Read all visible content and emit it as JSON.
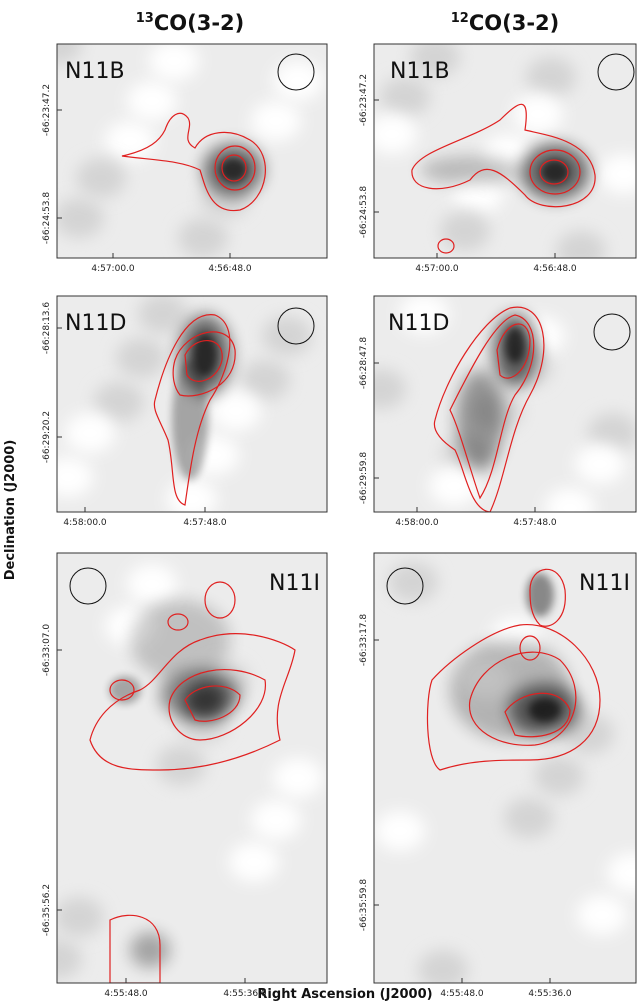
{
  "columns": [
    {
      "sup": "13",
      "text": "CO(3-2)"
    },
    {
      "sup": "12",
      "text": "CO(3-2)"
    }
  ],
  "y_axis_label": "Declination (J2000)",
  "x_axis_label": "Right Ascension (J2000)",
  "panels": [
    {
      "label": "N11B",
      "yticks": [
        "-66:23:47.2",
        "-66:24:53.8"
      ],
      "xticks": [
        "4:57:00.0",
        "4:56:48.0"
      ]
    },
    {
      "label": "N11B",
      "yticks": [
        "-66:23:47.2",
        "-66:24:53.8"
      ],
      "xticks": [
        "4:57:00.0",
        "4:56:48.0"
      ]
    },
    {
      "label": "N11D",
      "yticks": [
        "-66:28:13.6",
        "-66:29:20.2"
      ],
      "xticks": [
        "4:58:00.0",
        "4:57:48.0"
      ]
    },
    {
      "label": "N11D",
      "yticks": [
        "-66:28:47.8",
        "-66:29:59.8"
      ],
      "xticks": [
        "4:58:00.0",
        "4:57:48.0"
      ]
    },
    {
      "label": "N11I",
      "yticks": [
        "-66:33:07.0",
        "-66:35:56.2"
      ],
      "xticks": [
        "4:55:48.0",
        "4:55:36.0"
      ]
    },
    {
      "label": "N11I",
      "yticks": [
        "-66:33:17.8",
        "-66:35:59.8"
      ],
      "xticks": [
        "4:55:48.0",
        "4:55:36.0"
      ]
    }
  ]
}
